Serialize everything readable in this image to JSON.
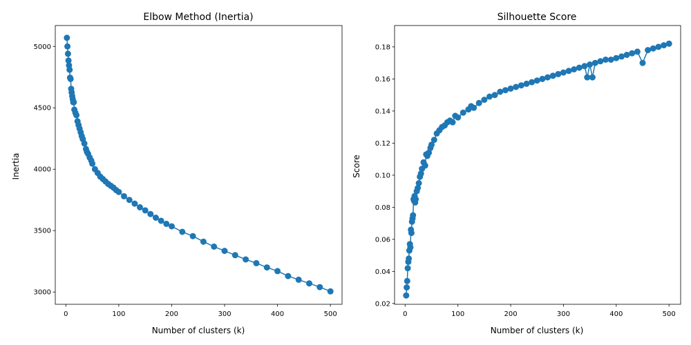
{
  "chart_data": [
    {
      "type": "line",
      "title": "Elbow Method (Inertia)",
      "xlabel": "Number of clusters (k)",
      "ylabel": "Inertia",
      "xlim": [
        -20,
        522
      ],
      "ylim": [
        2900,
        5170
      ],
      "xticks": [
        0,
        100,
        200,
        300,
        400,
        500
      ],
      "yticks": [
        3000,
        3500,
        4000,
        4500,
        5000
      ],
      "marker": "circle",
      "color": "#1f77b4",
      "grid": false,
      "x": [
        2,
        3,
        4,
        5,
        6,
        7,
        8,
        9,
        10,
        11,
        12,
        13,
        14,
        15,
        16,
        18,
        20,
        22,
        24,
        26,
        28,
        30,
        32,
        35,
        38,
        40,
        42,
        45,
        48,
        50,
        55,
        60,
        65,
        70,
        75,
        80,
        85,
        90,
        95,
        100,
        110,
        120,
        130,
        140,
        150,
        160,
        170,
        180,
        190,
        200,
        220,
        240,
        260,
        280,
        300,
        320,
        340,
        360,
        380,
        400,
        420,
        440,
        460,
        480,
        500
      ],
      "values": [
        5070,
        5000,
        4940,
        4885,
        4845,
        4810,
        4745,
        4735,
        4655,
        4625,
        4595,
        4570,
        4545,
        4545,
        4485,
        4460,
        4440,
        4390,
        4360,
        4330,
        4300,
        4270,
        4245,
        4210,
        4165,
        4140,
        4125,
        4095,
        4070,
        4045,
        4000,
        3970,
        3940,
        3920,
        3900,
        3880,
        3865,
        3850,
        3830,
        3815,
        3780,
        3750,
        3720,
        3690,
        3665,
        3635,
        3605,
        3580,
        3555,
        3535,
        3490,
        3455,
        3410,
        3370,
        3335,
        3300,
        3265,
        3235,
        3200,
        3170,
        3130,
        3100,
        3070,
        3040,
        3005
      ]
    },
    {
      "type": "line",
      "title": "Silhouette Score",
      "xlabel": "Number of clusters (k)",
      "ylabel": "Score",
      "xlim": [
        -20,
        522
      ],
      "ylim": [
        0.0195,
        0.1933
      ],
      "xticks": [
        0,
        100,
        200,
        300,
        400,
        500
      ],
      "yticks": [
        0.02,
        0.04,
        0.06,
        0.08,
        0.1,
        0.12,
        0.14,
        0.16,
        0.18
      ],
      "ytick_labels": [
        "0.02",
        "0.04",
        "0.06",
        "0.08",
        "0.10",
        "0.12",
        "0.14",
        "0.16",
        "0.18"
      ],
      "marker": "circle",
      "color": "#1f77b4",
      "grid": false,
      "x": [
        2,
        3,
        4,
        5,
        6,
        7,
        8,
        9,
        10,
        11,
        12,
        13,
        14,
        15,
        16,
        17,
        18,
        19,
        20,
        22,
        24,
        26,
        28,
        30,
        32,
        35,
        38,
        40,
        42,
        45,
        48,
        50,
        55,
        60,
        65,
        70,
        75,
        80,
        85,
        90,
        95,
        100,
        110,
        120,
        125,
        130,
        140,
        150,
        160,
        170,
        180,
        190,
        200,
        210,
        220,
        230,
        240,
        250,
        260,
        270,
        280,
        290,
        300,
        310,
        320,
        330,
        340,
        345,
        350,
        355,
        360,
        370,
        380,
        390,
        400,
        410,
        420,
        430,
        440,
        450,
        460,
        470,
        480,
        490,
        500
      ],
      "values": [
        0.025,
        0.03,
        0.034,
        0.042,
        0.046,
        0.048,
        0.053,
        0.057,
        0.055,
        0.066,
        0.064,
        0.071,
        0.073,
        0.075,
        0.085,
        0.084,
        0.087,
        0.083,
        0.085,
        0.09,
        0.092,
        0.095,
        0.099,
        0.101,
        0.104,
        0.108,
        0.106,
        0.113,
        0.112,
        0.114,
        0.117,
        0.119,
        0.122,
        0.126,
        0.128,
        0.13,
        0.131,
        0.133,
        0.134,
        0.133,
        0.137,
        0.136,
        0.139,
        0.141,
        0.143,
        0.142,
        0.145,
        0.147,
        0.149,
        0.15,
        0.152,
        0.153,
        0.154,
        0.155,
        0.156,
        0.157,
        0.158,
        0.159,
        0.16,
        0.161,
        0.162,
        0.163,
        0.164,
        0.165,
        0.166,
        0.167,
        0.168,
        0.161,
        0.169,
        0.161,
        0.17,
        0.171,
        0.172,
        0.172,
        0.173,
        0.174,
        0.175,
        0.176,
        0.177,
        0.17,
        0.178,
        0.179,
        0.18,
        0.181,
        0.182
      ]
    }
  ]
}
